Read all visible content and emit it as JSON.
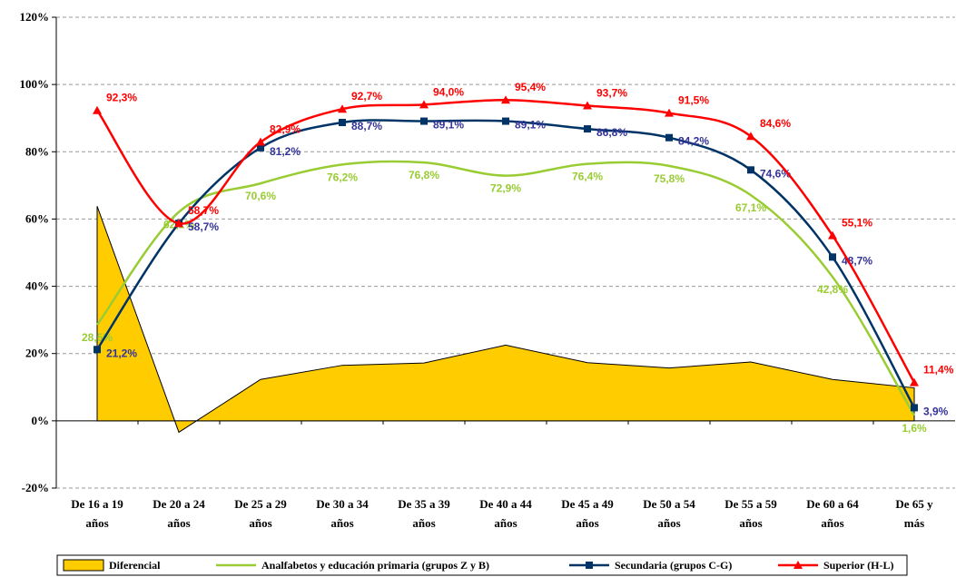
{
  "chart_data": {
    "type": "line",
    "categories": [
      [
        "De 16 a 19",
        "años"
      ],
      [
        "De 20 a 24",
        "años"
      ],
      [
        "De 25 a 29",
        "años"
      ],
      [
        "De 30 a 34",
        "años"
      ],
      [
        "De 35 a 39",
        "años"
      ],
      [
        "De 40 a 44",
        "años"
      ],
      [
        "De 45 a 49",
        "años"
      ],
      [
        "De 50 a 54",
        "años"
      ],
      [
        "De 55 a 59",
        "años"
      ],
      [
        "De 60 a 64",
        "años"
      ],
      [
        "De 65 y",
        "más"
      ]
    ],
    "ylim": [
      -20,
      120
    ],
    "yticks": [
      {
        "value": -20,
        "label": "-20%"
      },
      {
        "value": 0,
        "label": "0%"
      },
      {
        "value": 20,
        "label": "20%"
      },
      {
        "value": 40,
        "label": "40%"
      },
      {
        "value": 60,
        "label": "60%"
      },
      {
        "value": 80,
        "label": "80%"
      },
      {
        "value": 100,
        "label": "100%"
      },
      {
        "value": 120,
        "label": "120%"
      }
    ],
    "grid": true,
    "legend": "bottom",
    "series": [
      {
        "name": "Diferencial",
        "type": "area",
        "color": "#FFCC00",
        "values": [
          63.8,
          -3.4,
          12.3,
          16.5,
          17.2,
          22.5,
          17.3,
          15.7,
          17.5,
          12.3,
          9.8
        ]
      },
      {
        "name": "Analfabetos y educación primaria (grupos Z y B)",
        "type": "line",
        "color": "#99CC33",
        "values": [
          28.5,
          62.1,
          70.6,
          76.2,
          76.8,
          72.9,
          76.4,
          75.8,
          67.1,
          42.8,
          1.6
        ],
        "value_labels": [
          "28,5%",
          "62,1%",
          "70,6%",
          "76,2%",
          "76,8%",
          "72,9%",
          "76,4%",
          "75,8%",
          "67,1%",
          "42,8%",
          "1,6%"
        ]
      },
      {
        "name": "Secundaria (grupos C-G)",
        "type": "line",
        "color": "#003366",
        "label_color": "#333399",
        "marker": "square",
        "values": [
          21.2,
          58.7,
          81.2,
          88.7,
          89.1,
          89.1,
          86.8,
          84.2,
          74.6,
          48.7,
          3.9
        ],
        "value_labels": [
          "21,2%",
          "58,7%",
          "81,2%",
          "88,7%",
          "89,1%",
          "89,1%",
          "86,8%",
          "84,2%",
          "74,6%",
          "48,7%",
          "3,9%"
        ]
      },
      {
        "name": "Superior (H-L)",
        "type": "line",
        "color": "#FF0000",
        "marker": "triangle",
        "values": [
          92.3,
          58.7,
          82.9,
          92.7,
          94.0,
          95.4,
          93.7,
          91.5,
          84.6,
          55.1,
          11.4
        ],
        "value_labels": [
          "92,3%",
          "58,7%",
          "82,9%",
          "92,7%",
          "94,0%",
          "95,4%",
          "93,7%",
          "91,5%",
          "84,6%",
          "55,1%",
          "11,4%"
        ]
      }
    ]
  }
}
